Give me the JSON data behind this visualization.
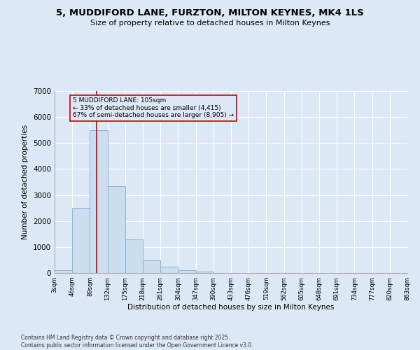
{
  "title": "5, MUDDIFORD LANE, FURZTON, MILTON KEYNES, MK4 1LS",
  "subtitle": "Size of property relative to detached houses in Milton Keynes",
  "xlabel": "Distribution of detached houses by size in Milton Keynes",
  "ylabel": "Number of detached properties",
  "bar_color": "#ccddf0",
  "bar_edge_color": "#7aadd4",
  "background_color": "#dce8f5",
  "grid_color": "#ffffff",
  "vline_x": 105,
  "vline_color": "#cc0000",
  "annotation_title": "5 MUDDIFORD LANE: 105sqm",
  "annotation_line1": "← 33% of detached houses are smaller (4,415)",
  "annotation_line2": "67% of semi-detached houses are larger (8,905) →",
  "footnote1": "Contains HM Land Registry data © Crown copyright and database right 2025.",
  "footnote2": "Contains public sector information licensed under the Open Government Licence v3.0.",
  "bin_edges": [
    3,
    46,
    89,
    132,
    175,
    218,
    261,
    304,
    347,
    390,
    433,
    476,
    519,
    562,
    605,
    648,
    691,
    734,
    777,
    820,
    863
  ],
  "bin_counts": [
    100,
    2500,
    5500,
    3350,
    1300,
    480,
    230,
    100,
    55,
    0,
    0,
    0,
    0,
    0,
    0,
    0,
    0,
    0,
    0,
    0
  ],
  "ylim": [
    0,
    7000
  ],
  "yticks": [
    0,
    1000,
    2000,
    3000,
    4000,
    5000,
    6000,
    7000
  ],
  "tick_labels": [
    "3sqm",
    "46sqm",
    "89sqm",
    "132sqm",
    "175sqm",
    "218sqm",
    "261sqm",
    "304sqm",
    "347sqm",
    "390sqm",
    "433sqm",
    "476sqm",
    "519sqm",
    "562sqm",
    "605sqm",
    "648sqm",
    "691sqm",
    "734sqm",
    "777sqm",
    "820sqm",
    "863sqm"
  ]
}
